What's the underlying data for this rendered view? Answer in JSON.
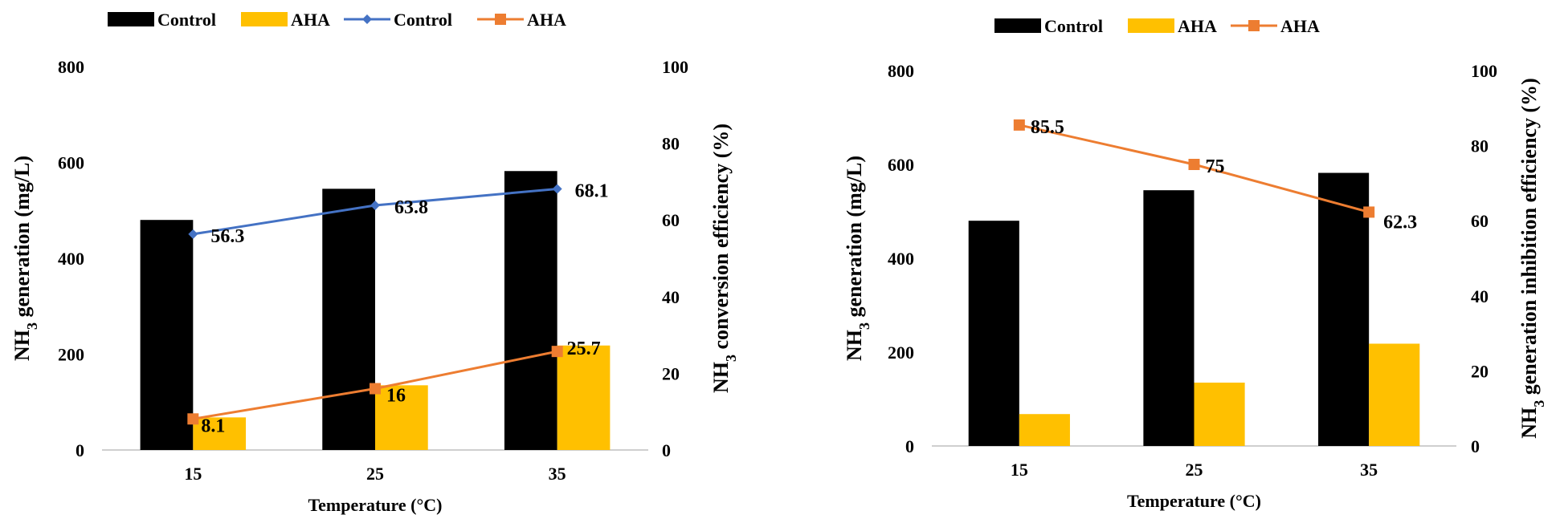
{
  "colors": {
    "control_bar": "#000000",
    "aha_bar": "#ffc000",
    "control_line": "#4472c4",
    "aha_line": "#ed7d31"
  },
  "chart_data": [
    {
      "type": "bar",
      "categories": [
        "15",
        "25",
        "35"
      ],
      "series": [
        {
          "name": "Control",
          "kind": "bar",
          "axis": "left",
          "values": [
            480,
            545,
            582
          ]
        },
        {
          "name": "AHA",
          "kind": "bar",
          "axis": "left",
          "values": [
            68,
            135,
            218
          ]
        },
        {
          "name": "Control",
          "kind": "line",
          "axis": "right",
          "marker": "diamond",
          "values": [
            56.3,
            63.8,
            68.1
          ],
          "labels": [
            "56.3",
            "63.8",
            "68.1"
          ]
        },
        {
          "name": "AHA",
          "kind": "line",
          "axis": "right",
          "marker": "square",
          "values": [
            8.1,
            16,
            25.7
          ],
          "labels": [
            "8.1",
            "16",
            "25.7"
          ]
        }
      ],
      "xlabel": "Temperature  (°C)",
      "ylabel_main": "NH",
      "ylabel_sub": "3",
      "ylabel_rest": " generation  (mg/L)",
      "y2label_main": "NH",
      "y2label_sub": "3",
      "y2label_rest": " conversion efficiency (%)",
      "ylim": [
        0,
        800
      ],
      "yticks": [
        "0",
        "200",
        "400",
        "600",
        "800"
      ],
      "y2lim": [
        0,
        100
      ],
      "y2ticks": [
        "0",
        "20",
        "40",
        "60",
        "80",
        "100"
      ],
      "legend": [
        "Control",
        "AHA",
        "Control",
        "AHA"
      ],
      "legend_position": "top",
      "grid": false
    },
    {
      "type": "bar",
      "categories": [
        "15",
        "25",
        "35"
      ],
      "series": [
        {
          "name": "Control",
          "kind": "bar",
          "axis": "left",
          "values": [
            480,
            545,
            582
          ]
        },
        {
          "name": "AHA",
          "kind": "bar",
          "axis": "left",
          "values": [
            68,
            135,
            218
          ]
        },
        {
          "name": "AHA",
          "kind": "line",
          "axis": "right",
          "marker": "square",
          "values": [
            85.5,
            75,
            62.3
          ],
          "labels": [
            "85.5",
            "75",
            "62.3"
          ]
        }
      ],
      "xlabel": "Temperature  (°C)",
      "ylabel_main": "NH",
      "ylabel_sub": "3",
      "ylabel_rest": " generation  (mg/L)",
      "y2label_main": "NH",
      "y2label_sub": "3",
      "y2label_rest": " generation inhibition efficiency (%)",
      "ylim": [
        0,
        800
      ],
      "yticks": [
        "0",
        "200",
        "400",
        "600",
        "800"
      ],
      "y2lim": [
        0,
        100
      ],
      "y2ticks": [
        "0",
        "20",
        "40",
        "60",
        "80",
        "100"
      ],
      "legend": [
        "Control",
        "AHA",
        "AHA"
      ],
      "legend_position": "top",
      "grid": false
    }
  ]
}
